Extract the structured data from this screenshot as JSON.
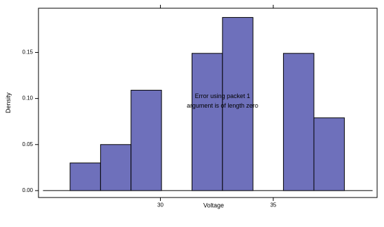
{
  "chart_data": {
    "type": "bar",
    "subtype": "histogram",
    "xlabel": "Voltage",
    "ylabel": "Density",
    "xlim": [
      24.6,
      39.6
    ],
    "ylim": [
      -0.0075,
      0.198
    ],
    "x_ticks": [
      {
        "value": 30,
        "label": "30"
      },
      {
        "value": 35,
        "label": "35"
      }
    ],
    "y_ticks": [
      {
        "value": 0.0,
        "label": "0.00"
      },
      {
        "value": 0.05,
        "label": "0.05"
      },
      {
        "value": 0.1,
        "label": "0.10"
      },
      {
        "value": 0.15,
        "label": "0.15"
      }
    ],
    "bins": [
      {
        "x0": 26.0,
        "x1": 27.35,
        "density": 0.03
      },
      {
        "x0": 27.35,
        "x1": 28.7,
        "density": 0.05
      },
      {
        "x0": 28.7,
        "x1": 30.05,
        "density": 0.109
      },
      {
        "x0": 30.05,
        "x1": 31.4,
        "density": 0.0
      },
      {
        "x0": 31.4,
        "x1": 32.75,
        "density": 0.149
      },
      {
        "x0": 32.75,
        "x1": 34.1,
        "density": 0.188
      },
      {
        "x0": 34.1,
        "x1": 35.45,
        "density": 0.0
      },
      {
        "x0": 35.45,
        "x1": 36.8,
        "density": 0.149
      },
      {
        "x0": 36.8,
        "x1": 38.15,
        "density": 0.079
      }
    ],
    "baseline_range": [
      24.8,
      39.4
    ],
    "bar_fill": "#6e70bb",
    "bar_stroke": "#000000",
    "annotation": {
      "lines": [
        "Error using packet 1",
        "argument is of length zero"
      ],
      "x": 32.75,
      "y": 0.097
    },
    "grid": false,
    "legend": "none"
  }
}
